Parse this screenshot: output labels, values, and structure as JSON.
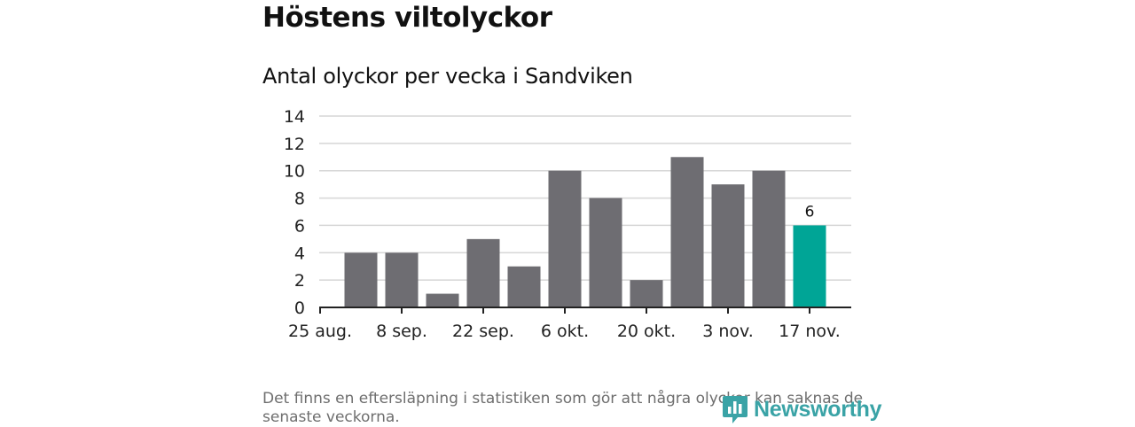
{
  "header": {
    "title": "Höstens viltolyckor",
    "subtitle": "Antal olyckor per vecka i Sandviken"
  },
  "footer": {
    "note": "Det finns en eftersläpning i statistiken som gör att några olyckor kan saknas de senaste veckorna.",
    "brand": "Newsworthy"
  },
  "colors": {
    "bar": "#6e6d72",
    "highlight": "#00a596",
    "grid": "#d6d6d6",
    "axis": "#222222",
    "brand": "#3aa3a6"
  },
  "chart_data": {
    "type": "bar",
    "title": "Antal olyckor per vecka i Sandviken",
    "xlabel": "",
    "ylabel": "",
    "values": [
      4,
      4,
      1,
      5,
      3,
      10,
      8,
      2,
      11,
      9,
      10,
      6
    ],
    "highlight_index": 11,
    "highlight_label": "6",
    "ylim": [
      0,
      14
    ],
    "yticks": [
      0,
      2,
      4,
      6,
      8,
      10,
      12,
      14
    ],
    "xtick_labels": [
      "25 aug.",
      "8 sep.",
      "22 sep.",
      "6 okt.",
      "20 okt.",
      "3 nov.",
      "17 nov."
    ],
    "grid": true,
    "legend": "none"
  }
}
